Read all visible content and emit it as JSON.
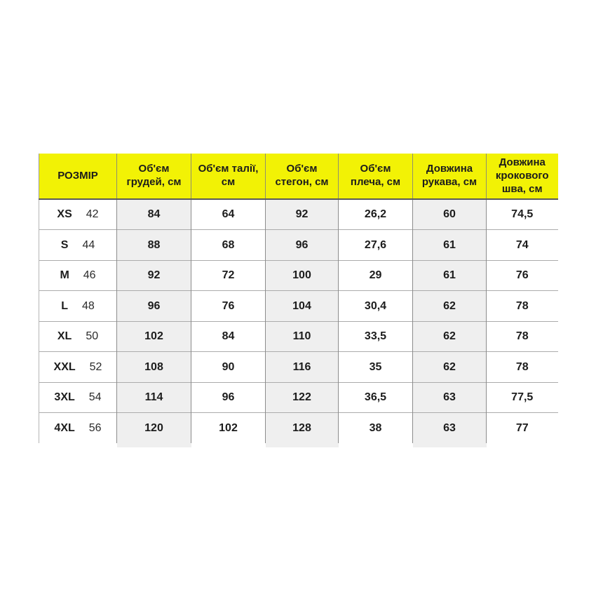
{
  "chart_data": {
    "type": "table",
    "title": "",
    "header": {
      "size": "РОЗМІР",
      "cols": [
        "Об'єм грудей, см",
        "Об'єм талії, см",
        "Об'єм стегон, см",
        "Об'єм плеча, см",
        "Довжина рукава, см",
        "Довжина крокового шва, см"
      ]
    },
    "rows": [
      {
        "size": "XS",
        "size_num": "42",
        "chest": "84",
        "waist": "64",
        "hips": "92",
        "shoulder": "26,2",
        "sleeve": "60",
        "inseam": "74,5"
      },
      {
        "size": "S",
        "size_num": "44",
        "chest": "88",
        "waist": "68",
        "hips": "96",
        "shoulder": "27,6",
        "sleeve": "61",
        "inseam": "74"
      },
      {
        "size": "M",
        "size_num": "46",
        "chest": "92",
        "waist": "72",
        "hips": "100",
        "shoulder": "29",
        "sleeve": "61",
        "inseam": "76"
      },
      {
        "size": "L",
        "size_num": "48",
        "chest": "96",
        "waist": "76",
        "hips": "104",
        "shoulder": "30,4",
        "sleeve": "62",
        "inseam": "78"
      },
      {
        "size": "XL",
        "size_num": "50",
        "chest": "102",
        "waist": "84",
        "hips": "110",
        "shoulder": "33,5",
        "sleeve": "62",
        "inseam": "78"
      },
      {
        "size": "XXL",
        "size_num": "52",
        "chest": "108",
        "waist": "90",
        "hips": "116",
        "shoulder": "35",
        "sleeve": "62",
        "inseam": "78"
      },
      {
        "size": "3XL",
        "size_num": "54",
        "chest": "114",
        "waist": "96",
        "hips": "122",
        "shoulder": "36,5",
        "sleeve": "63",
        "inseam": "77,5"
      },
      {
        "size": "4XL",
        "size_num": "56",
        "chest": "120",
        "waist": "102",
        "hips": "128",
        "shoulder": "38",
        "sleeve": "63",
        "inseam": "77"
      }
    ]
  },
  "colors": {
    "header_bg": "#F2F205",
    "shaded_column_bg": "#EFEFEF",
    "vertical_border": "#8C8C8C",
    "horizontal_border": "#ABABAB",
    "header_bottom_border": "#5A5A5A",
    "text": "#1C1C1C",
    "page_bg": "#FFFFFF"
  }
}
